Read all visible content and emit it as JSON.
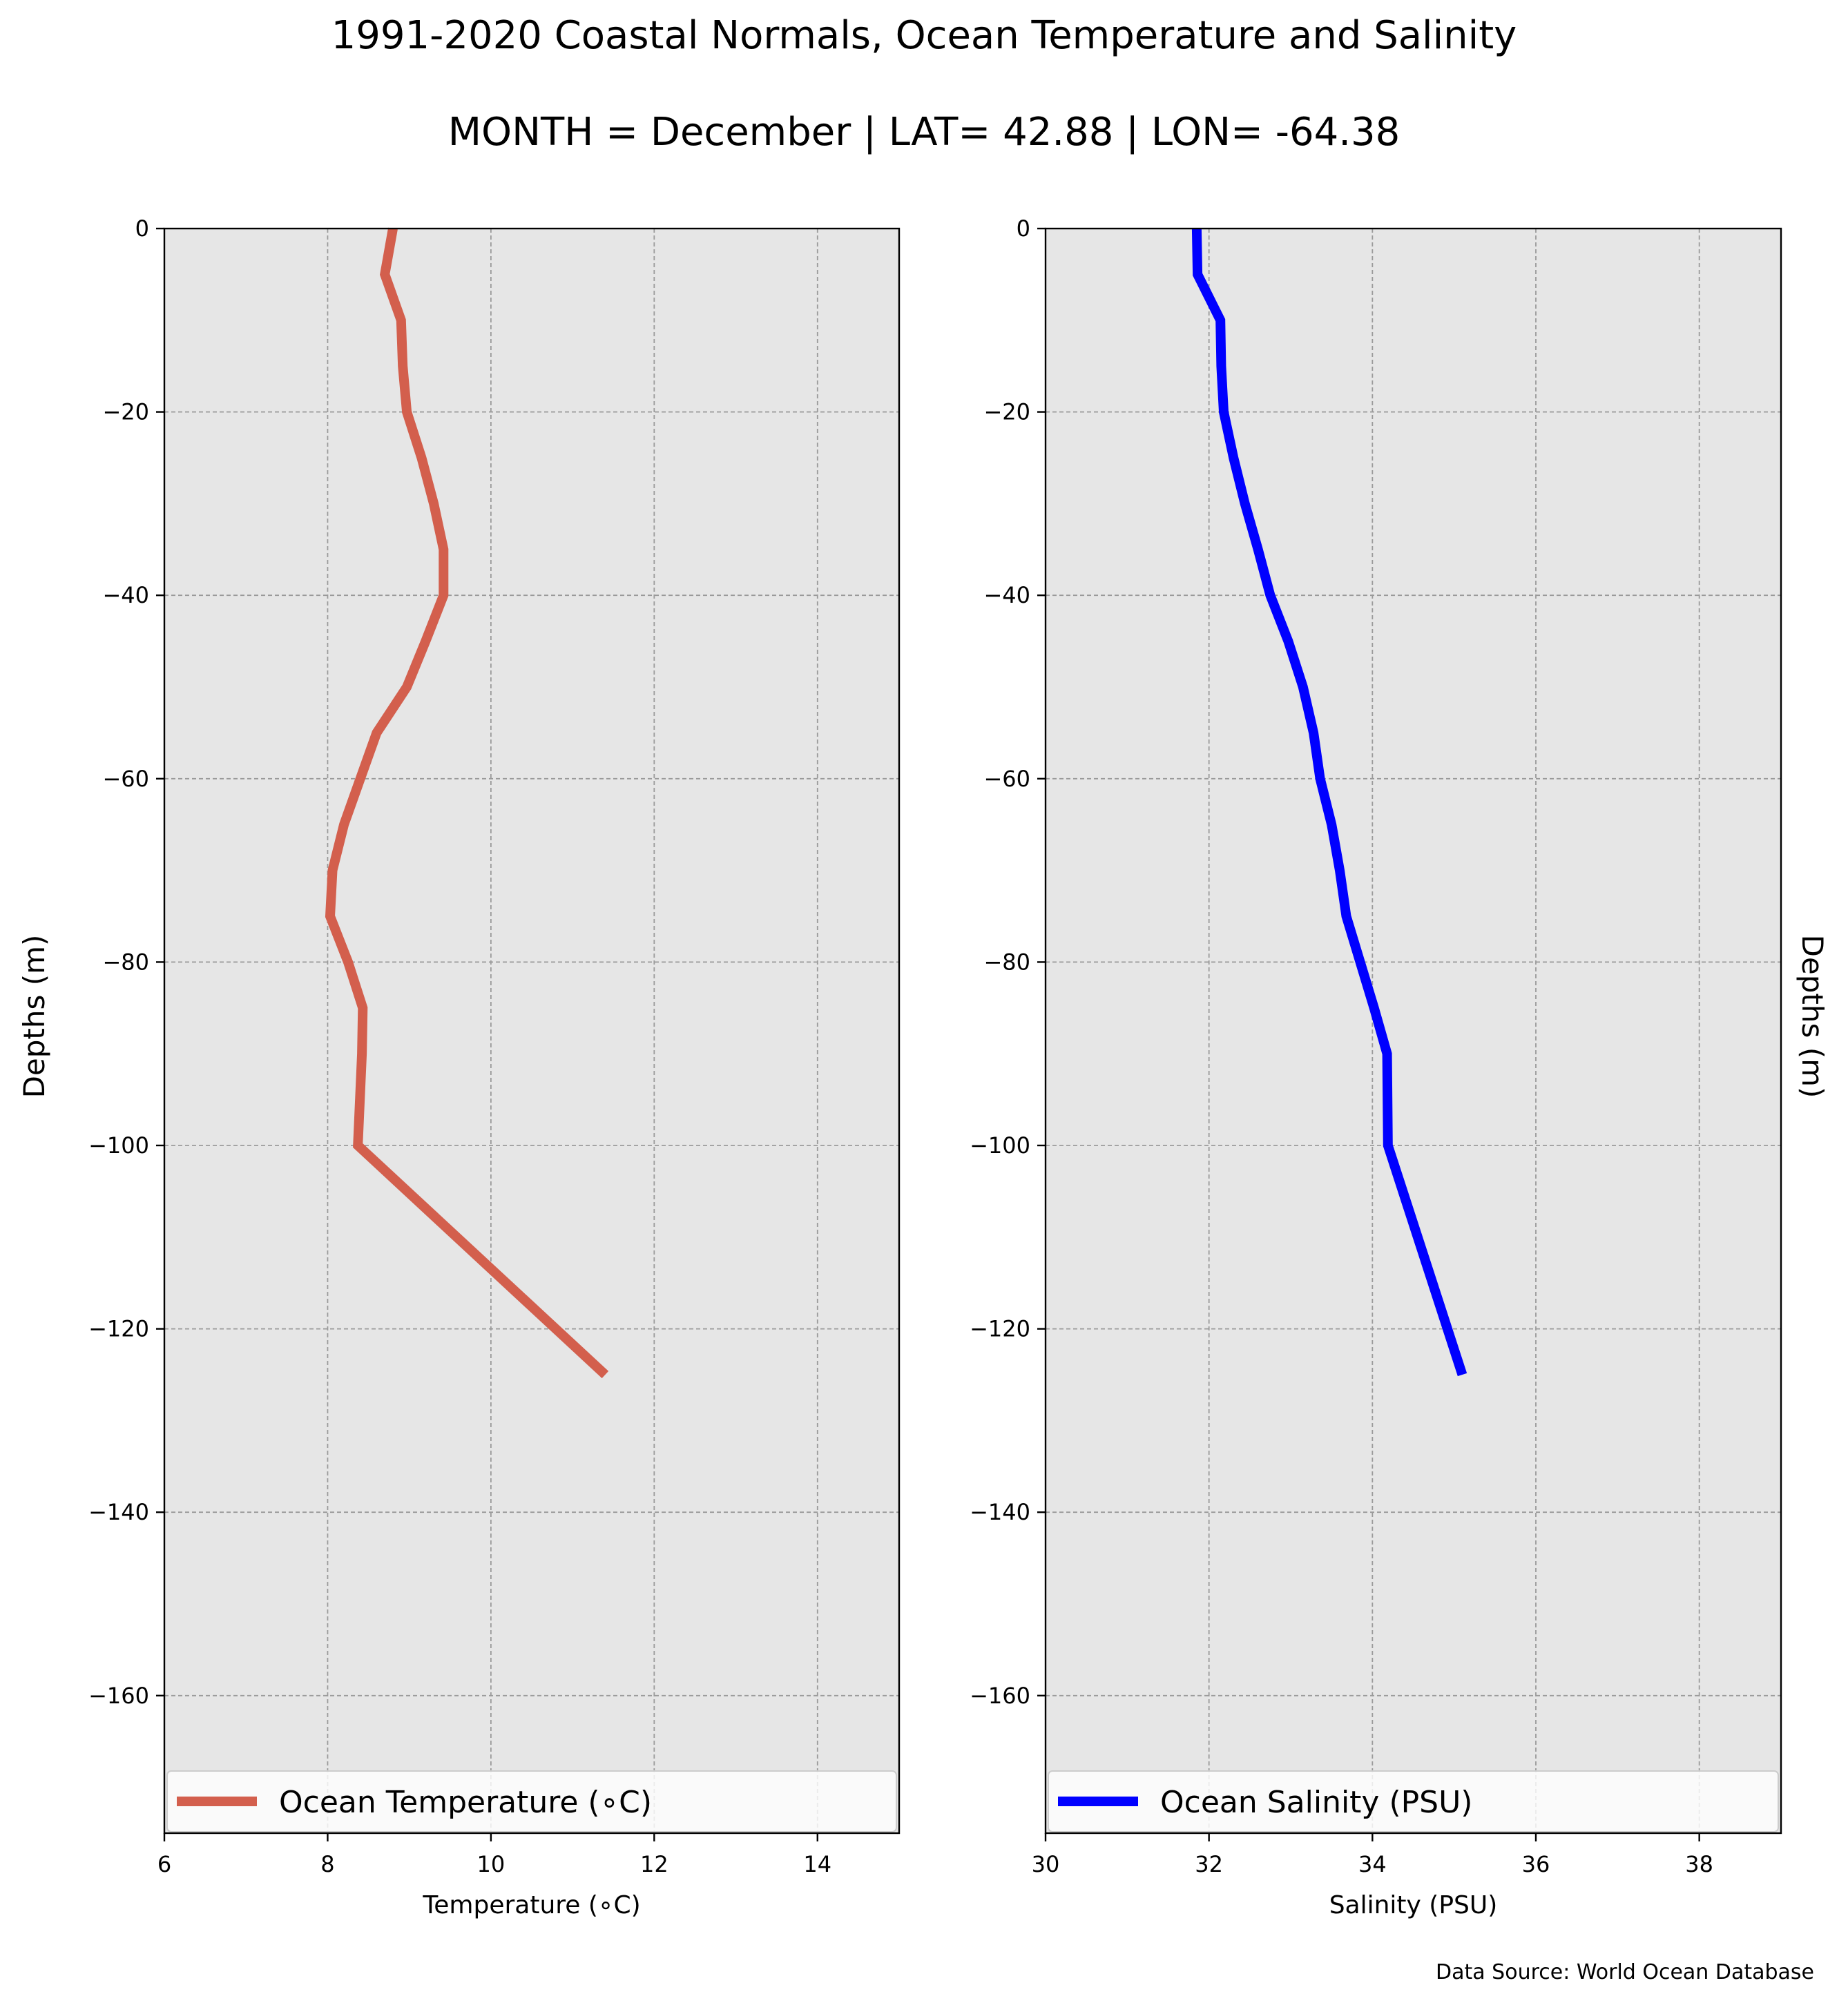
{
  "chart_data": {
    "title": "1991-2020 Coastal Normals, Ocean Temperature and Salinity",
    "subtitle": "MONTH = December | LAT= 42.88 | LON= -64.38",
    "source": "Data Source: World Ocean Database",
    "panels": [
      {
        "type": "line",
        "xlabel": "Temperature ($^\\circ$C)",
        "xlabel_display": "Temperature (∘C)",
        "ylabel": "Depths (m)",
        "xlim": [
          6,
          15
        ],
        "ylim": [
          -175,
          0
        ],
        "xticks": [
          6,
          8,
          10,
          12,
          14
        ],
        "xtick_labels": [
          "6",
          "8",
          "10",
          "12",
          "14"
        ],
        "yticks": [
          0,
          -20,
          -40,
          -60,
          -80,
          -100,
          -120,
          -140,
          -160
        ],
        "ytick_labels": [
          "0",
          "−20",
          "−40",
          "−60",
          "−80",
          "−100",
          "−120",
          "−140",
          "−160"
        ],
        "grid": true,
        "legend_location": "lower center",
        "series": [
          {
            "name": "Ocean Temperature (∘C)",
            "color": "#d35f4d",
            "x": [
              8.8,
              8.7,
              8.9,
              8.92,
              8.97,
              9.15,
              9.3,
              9.42,
              9.42,
              9.2,
              8.97,
              8.6,
              8.4,
              8.2,
              8.06,
              8.03,
              8.25,
              8.43,
              8.42,
              8.37,
              11.4
            ],
            "y": [
              0,
              -5,
              -10,
              -15,
              -20,
              -25,
              -30,
              -35,
              -40,
              -45,
              -50,
              -55,
              -60,
              -65,
              -70,
              -75,
              -80,
              -85,
              -90,
              -100,
              -125
            ]
          }
        ]
      },
      {
        "type": "line",
        "xlabel": "Salinity (PSU)",
        "ylabel": "Depths (m)",
        "xlim": [
          30,
          39
        ],
        "ylim": [
          -175,
          0
        ],
        "xticks": [
          30,
          32,
          34,
          36,
          38
        ],
        "xtick_labels": [
          "30",
          "32",
          "34",
          "36",
          "38"
        ],
        "yticks": [
          0,
          -20,
          -40,
          -60,
          -80,
          -100,
          -120,
          -140,
          -160
        ],
        "ytick_labels": [
          "0",
          "−20",
          "−40",
          "−60",
          "−80",
          "−100",
          "−120",
          "−140",
          "−160"
        ],
        "grid": true,
        "legend_location": "lower center",
        "series": [
          {
            "name": "Ocean Salinity (PSU)",
            "color": "#0000ff",
            "x": [
              31.85,
              31.86,
              32.14,
              32.15,
              32.18,
              32.3,
              32.44,
              32.6,
              32.75,
              32.97,
              33.15,
              33.28,
              33.36,
              33.5,
              33.6,
              33.68,
              33.85,
              34.02,
              34.18,
              34.19,
              35.1
            ],
            "y": [
              0,
              -5,
              -10,
              -15,
              -20,
              -25,
              -30,
              -35,
              -40,
              -45,
              -50,
              -55,
              -60,
              -65,
              -70,
              -75,
              -80,
              -85,
              -90,
              -100,
              -125
            ]
          }
        ]
      }
    ]
  }
}
